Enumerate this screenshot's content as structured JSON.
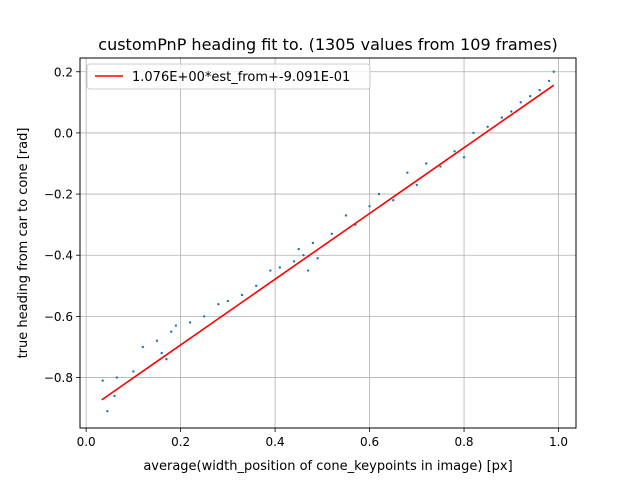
{
  "chart_data": {
    "type": "scatter",
    "title": "customPnP heading fit to. (1305 values from 109 frames)",
    "xlabel": "average(width_position of cone_keypoints in image) [px]",
    "ylabel": "true heading from car to cone [rad]",
    "xlim": [
      -0.013,
      1.037
    ],
    "ylim": [
      -0.965,
      0.245
    ],
    "xticks": [
      0.0,
      0.2,
      0.4,
      0.6,
      0.8,
      1.0
    ],
    "xtick_labels": [
      "0.0",
      "0.2",
      "0.4",
      "0.6",
      "0.8",
      "1.0"
    ],
    "yticks": [
      -0.8,
      -0.6,
      -0.4,
      -0.2,
      0.0,
      0.2
    ],
    "ytick_labels": [
      "−0.8",
      "−0.6",
      "−0.4",
      "−0.2",
      "0.0",
      "0.2"
    ],
    "grid": true,
    "legend_position": "top-left",
    "series": [
      {
        "name": "1.076E+00*est_from+-9.091E-01",
        "type": "line",
        "color": "#ff0000",
        "x": [
          0.033,
          0.99
        ],
        "y": [
          -0.873,
          0.156
        ]
      },
      {
        "type": "scatter",
        "color": "#1f77b4",
        "x": [
          0.035,
          0.045,
          0.06,
          0.065,
          0.1,
          0.12,
          0.15,
          0.16,
          0.17,
          0.18,
          0.19,
          0.22,
          0.25,
          0.28,
          0.3,
          0.33,
          0.36,
          0.39,
          0.41,
          0.44,
          0.45,
          0.46,
          0.47,
          0.48,
          0.49,
          0.52,
          0.55,
          0.57,
          0.6,
          0.62,
          0.65,
          0.68,
          0.7,
          0.72,
          0.75,
          0.78,
          0.8,
          0.82,
          0.85,
          0.88,
          0.9,
          0.92,
          0.94,
          0.96,
          0.98,
          0.99
        ],
        "y": [
          -0.81,
          -0.91,
          -0.86,
          -0.8,
          -0.78,
          -0.7,
          -0.68,
          -0.72,
          -0.74,
          -0.65,
          -0.63,
          -0.62,
          -0.6,
          -0.56,
          -0.55,
          -0.53,
          -0.5,
          -0.45,
          -0.44,
          -0.42,
          -0.38,
          -0.4,
          -0.45,
          -0.36,
          -0.41,
          -0.33,
          -0.27,
          -0.3,
          -0.24,
          -0.2,
          -0.22,
          -0.13,
          -0.17,
          -0.1,
          -0.11,
          -0.06,
          -0.08,
          0.0,
          0.02,
          0.05,
          0.07,
          0.1,
          0.12,
          0.14,
          0.17,
          0.2
        ]
      }
    ]
  }
}
